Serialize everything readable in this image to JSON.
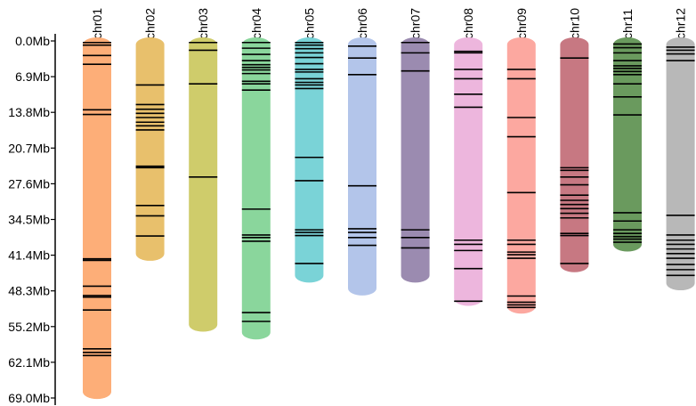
{
  "chart_data": {
    "type": "chromosome_map",
    "unit": "Mb",
    "y_axis": {
      "min": 0,
      "max": 69.0,
      "ticks": [
        "0.0Mb",
        "6.9Mb",
        "13.8Mb",
        "20.7Mb",
        "27.6Mb",
        "34.5Mb",
        "41.4Mb",
        "48.3Mb",
        "55.2Mb",
        "62.1Mb",
        "69.0Mb"
      ],
      "tick_values": [
        0,
        6.9,
        13.8,
        20.7,
        27.6,
        34.5,
        41.4,
        48.3,
        55.2,
        62.1,
        69.0
      ]
    },
    "chromosomes": [
      {
        "name": "chr01",
        "length": 68.5,
        "color": "#fdae78",
        "markers": [
          0.3,
          0.8,
          2.8,
          4.5,
          13.3,
          14.2,
          42.1,
          42.4,
          47.4,
          49.2,
          49.5,
          52.0,
          59.5,
          60.2,
          60.8
        ]
      },
      {
        "name": "chr02",
        "length": 41.8,
        "color": "#e8c06c",
        "markers": [
          8.5,
          12.3,
          13.2,
          14.0,
          14.8,
          15.7,
          16.4,
          17.2,
          24.2,
          24.5,
          31.8,
          33.8,
          37.7
        ]
      },
      {
        "name": "chr03",
        "length": 55.5,
        "color": "#cfcc6b",
        "markers": [
          0.3,
          1.8,
          8.3,
          26.3
        ]
      },
      {
        "name": "chr04",
        "length": 57.0,
        "color": "#8ad69c",
        "markers": [
          0.3,
          1.4,
          2.6,
          3.8,
          4.6,
          5.1,
          5.6,
          6.3,
          7.8,
          8.3,
          9.5,
          32.5,
          37.5,
          38.0,
          38.7,
          52.5,
          54.2
        ]
      },
      {
        "name": "chr05",
        "length": 46.0,
        "color": "#7ad3d7",
        "markers": [
          0.3,
          0.8,
          1.5,
          2.3,
          3.2,
          4.4,
          5.5,
          6.0,
          7.3,
          8.0,
          8.5,
          9.2,
          22.5,
          27.0,
          36.5,
          37.0,
          37.6,
          43.0
        ]
      },
      {
        "name": "chr06",
        "length": 48.5,
        "color": "#b3c5ea",
        "markers": [
          1.0,
          3.3,
          6.5,
          28.0,
          36.3,
          37.0,
          38.0,
          39.5
        ]
      },
      {
        "name": "chr07",
        "length": 46.0,
        "color": "#9b8bb0",
        "markers": [
          0.3,
          2.3,
          5.8,
          36.5,
          38.0,
          40.0
        ]
      },
      {
        "name": "chr08",
        "length": 50.5,
        "color": "#edb6dd",
        "markers": [
          2.0,
          2.3,
          5.5,
          7.3,
          10.3,
          12.8,
          38.5,
          39.3,
          40.5,
          44.0,
          50.3
        ]
      },
      {
        "name": "chr09",
        "length": 52.0,
        "color": "#fca8a0",
        "markers": [
          5.5,
          7.3,
          14.8,
          18.5,
          29.3,
          38.5,
          39.3,
          40.8,
          41.3,
          42.0,
          49.3,
          50.5,
          51.0,
          51.5
        ]
      },
      {
        "name": "chr10",
        "length": 44.0,
        "color": "#c77882",
        "markers": [
          3.3,
          24.5,
          25.0,
          26.3,
          27.8,
          29.8,
          30.8,
          31.6,
          32.4,
          33.3,
          34.2,
          37.2,
          37.6,
          43.0
        ]
      },
      {
        "name": "chr11",
        "length": 40.0,
        "color": "#6a9a5e",
        "markers": [
          0.6,
          1.3,
          2.3,
          3.8,
          4.8,
          5.3,
          5.9,
          6.5,
          8.3,
          10.8,
          14.3,
          33.2,
          34.8,
          36.5,
          37.2,
          37.8,
          38.3,
          38.9
        ]
      },
      {
        "name": "chr12",
        "length": 47.5,
        "color": "#b8b8b8",
        "markers": [
          1.2,
          1.8,
          2.5,
          3.8,
          33.7,
          37.5,
          38.5,
          39.3,
          40.2,
          41.1,
          42.0,
          43.2,
          44.2,
          45.3
        ]
      }
    ]
  }
}
